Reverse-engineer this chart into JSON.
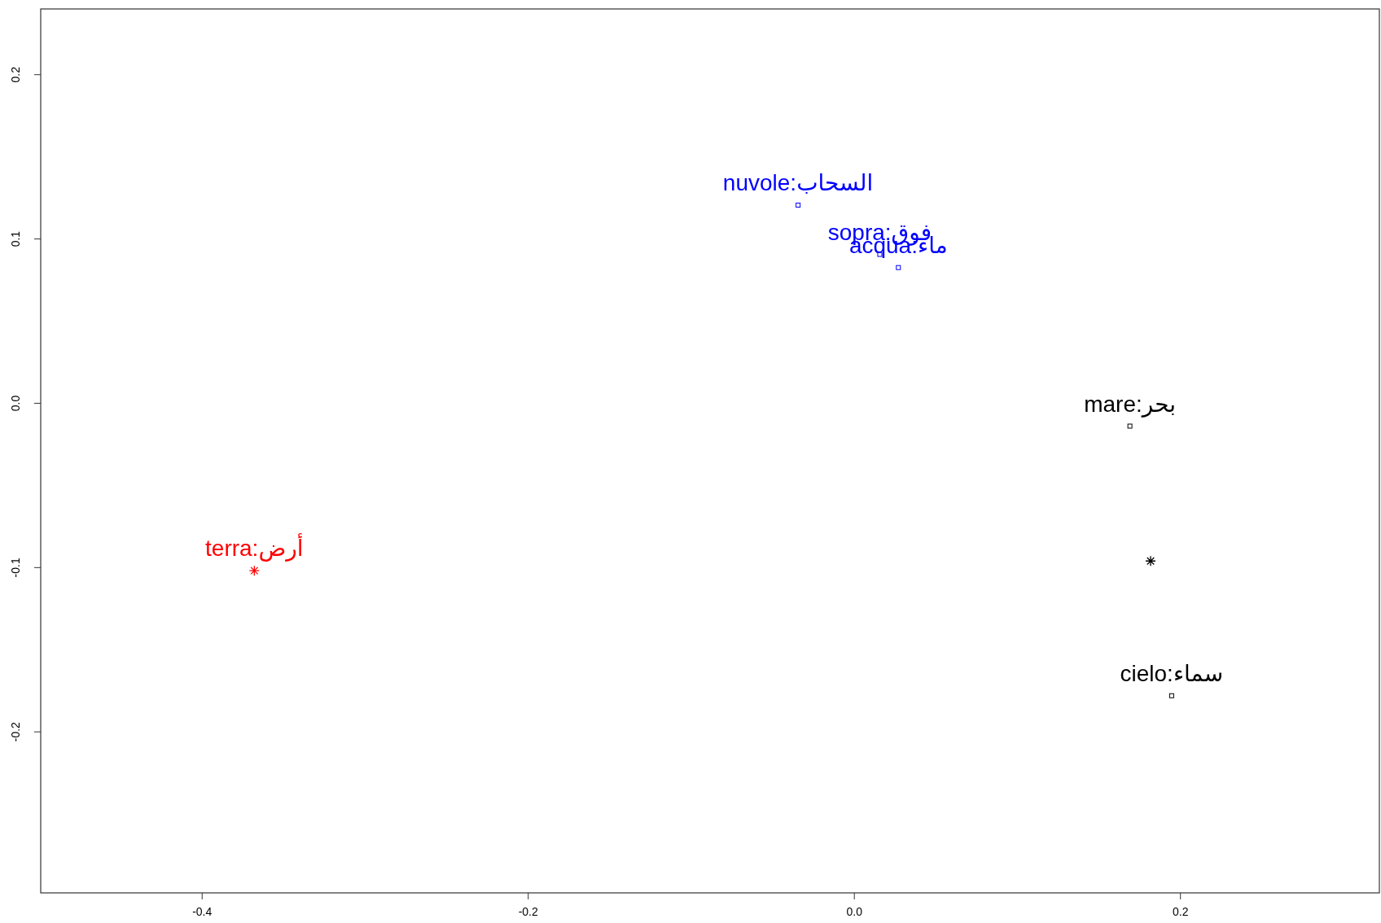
{
  "chart_data": {
    "type": "scatter",
    "xlim": [
      -0.499,
      0.322
    ],
    "ylim": [
      -0.298,
      0.24
    ],
    "xticks": [
      -0.4,
      -0.2,
      {
        "value": 0,
        "label": "0.0"
      },
      0.2
    ],
    "yticks": [
      -0.2,
      -0.1,
      {
        "value": 0,
        "label": "0.0"
      },
      0.1,
      0.2
    ],
    "grid": false,
    "series": [
      {
        "name": "nuvole:السحاب",
        "color": "#0000ff",
        "marker": "square",
        "x": [
          -0.0345
        ],
        "values": [
          0.1206
        ]
      },
      {
        "name": "sopra:فوق",
        "color": "#0000ff",
        "marker": "square",
        "x": [
          0.0156
        ],
        "values": [
          0.0906
        ]
      },
      {
        "name": "acqua:ماء",
        "color": "#0000ff",
        "marker": "square",
        "x": [
          0.027
        ],
        "values": [
          0.0826
        ]
      },
      {
        "name": "mare:بحر",
        "color": "#000000",
        "marker": "square",
        "x": [
          0.169
        ],
        "values": [
          -0.0139
        ]
      },
      {
        "color": "#000000",
        "marker": "cross",
        "x": [
          0.1817
        ],
        "values": [
          -0.096
        ]
      },
      {
        "name": "cielo:سماء",
        "color": "#000000",
        "marker": "square",
        "x": [
          0.1946
        ],
        "values": [
          -0.178
        ]
      },
      {
        "name": "terra:أرض",
        "color": "#ff0000",
        "marker": "cross",
        "x": [
          -0.368
        ],
        "values": [
          -0.1019
        ]
      }
    ]
  }
}
